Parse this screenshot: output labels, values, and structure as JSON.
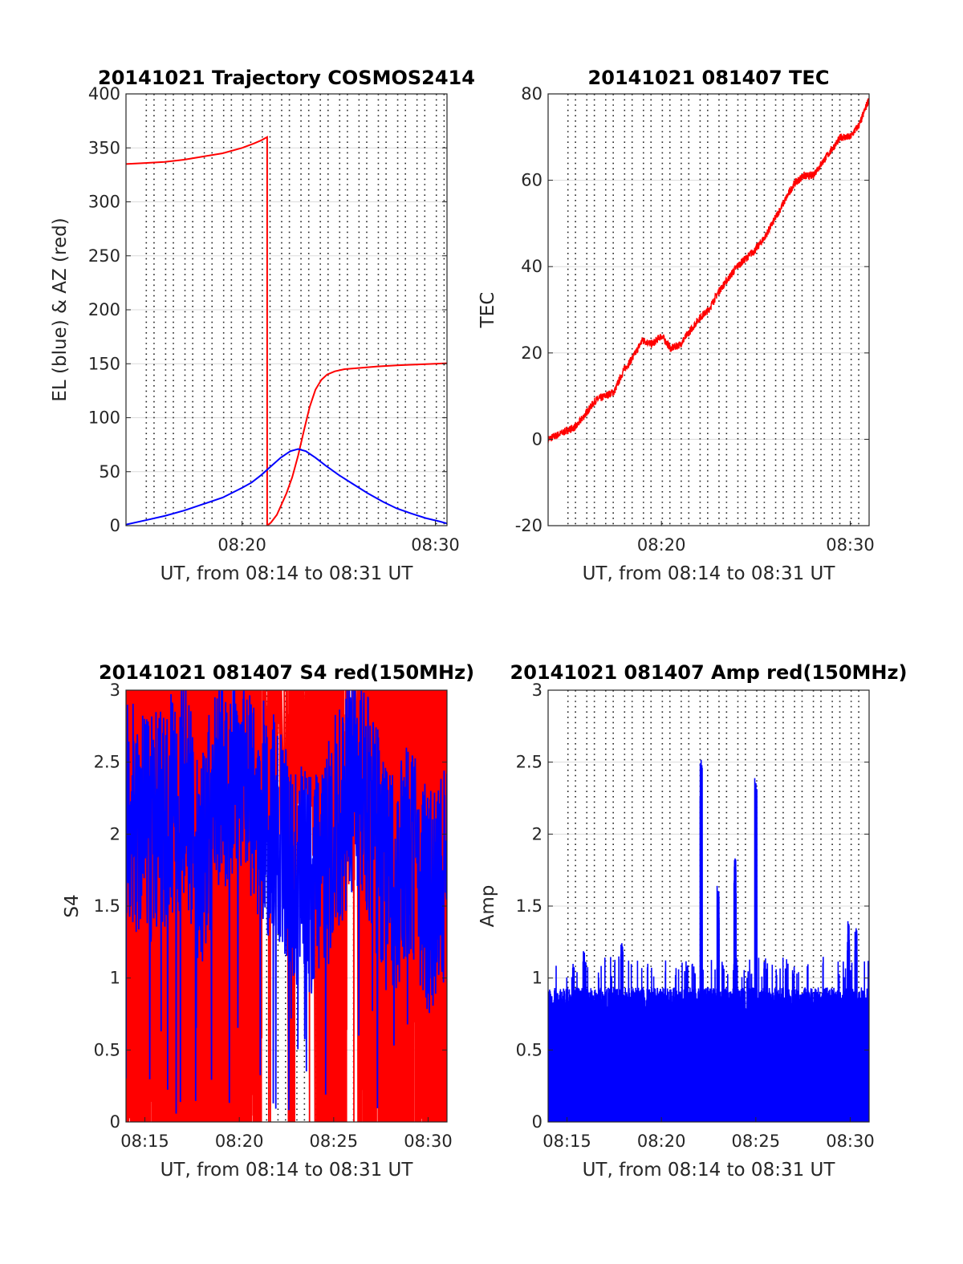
{
  "chart_data": [
    {
      "id": "trajectory",
      "type": "line",
      "title": "20141021 Trajectory COSMOS2414",
      "xlabel": "UT, from 08:14 to 08:31 UT",
      "ylabel": "EL (blue) & AZ (red)",
      "x_unit": "minutes after 08:00 UT",
      "xlim": [
        14.0,
        30.6
      ],
      "ylim": [
        0,
        400
      ],
      "yticks": [
        0,
        50,
        100,
        150,
        200,
        250,
        300,
        350,
        400
      ],
      "xticks": [
        {
          "value": 20,
          "label": "08:20"
        },
        {
          "value": 30,
          "label": "08:30"
        }
      ],
      "grid_y": true,
      "grid_x_minutes": [
        14.9,
        15.9,
        16.9,
        17.9,
        18.9,
        19.9,
        20.9,
        21.9,
        22.9,
        23.9,
        24.9,
        25.9,
        26.9,
        27.9,
        28.9,
        29.9
      ],
      "series": [
        {
          "color": "#ff0000",
          "x": [
            14.0,
            15.0,
            16.0,
            17.0,
            18.0,
            19.0,
            20.0,
            20.6,
            21.0,
            21.3,
            21.3,
            21.5,
            21.8,
            22.0,
            22.3,
            22.6,
            22.9,
            23.2,
            23.5,
            23.8,
            24.1,
            24.4,
            24.8,
            25.3,
            26.0,
            27.0,
            28.0,
            29.0,
            30.0,
            30.6
          ],
          "values": [
            335,
            336,
            337,
            339,
            342,
            345,
            350,
            354,
            357,
            360,
            0,
            3,
            10,
            18,
            30,
            45,
            65,
            88,
            110,
            126,
            135,
            140,
            143,
            145,
            146,
            147.5,
            148.5,
            149.3,
            150,
            150.5
          ]
        },
        {
          "color": "#0000ff",
          "x": [
            14.0,
            15.0,
            16.0,
            17.0,
            18.0,
            19.0,
            20.0,
            20.5,
            21.0,
            21.5,
            22.0,
            22.5,
            22.9,
            23.3,
            23.8,
            24.3,
            25.0,
            25.7,
            26.5,
            27.3,
            28.0,
            28.8,
            29.5,
            30.2,
            30.6
          ],
          "values": [
            1,
            5,
            9,
            14,
            20,
            26,
            35,
            40,
            47,
            55,
            63,
            69,
            71,
            69,
            63,
            56,
            47,
            39,
            30,
            22,
            16,
            11,
            7,
            4,
            2
          ]
        }
      ]
    },
    {
      "id": "tec",
      "type": "line",
      "title": "20141021 081407 TEC",
      "xlabel": "UT, from 08:14 to 08:31 UT",
      "ylabel": "TEC",
      "x_unit": "minutes after 08:00 UT",
      "xlim": [
        14.0,
        31.0
      ],
      "ylim": [
        -20,
        80
      ],
      "yticks": [
        -20,
        0,
        20,
        40,
        60,
        80
      ],
      "xticks": [
        {
          "value": 20,
          "label": "08:20"
        },
        {
          "value": 30,
          "label": "08:30"
        }
      ],
      "grid_y": true,
      "grid_x_minutes": [
        14.9,
        15.9,
        16.9,
        17.9,
        18.9,
        19.9,
        20.9,
        21.9,
        22.9,
        23.9,
        24.9,
        25.9,
        26.9,
        27.9,
        28.9,
        29.9
      ],
      "series": [
        {
          "color": "#ff0000",
          "x": [
            14.0,
            14.5,
            15.0,
            15.5,
            16.0,
            16.5,
            17.0,
            17.5,
            18.0,
            18.5,
            19.0,
            19.5,
            20.0,
            20.5,
            21.0,
            21.5,
            22.0,
            22.5,
            23.0,
            23.5,
            24.0,
            24.5,
            25.0,
            25.5,
            26.0,
            26.5,
            27.0,
            27.5,
            28.0,
            28.5,
            29.0,
            29.5,
            30.0,
            30.5,
            31.0
          ],
          "values": [
            0,
            1,
            2,
            3,
            6,
            9,
            10,
            11,
            16,
            19,
            23,
            22,
            24,
            21,
            22,
            25,
            28,
            30,
            34,
            37,
            40,
            42,
            44,
            47,
            51,
            55,
            59,
            61,
            61,
            64,
            67,
            70,
            70,
            73,
            79
          ]
        }
      ]
    },
    {
      "id": "s4",
      "type": "line",
      "title": "20141021 081407 S4 red(150MHz)",
      "xlabel": "UT, from 08:14 to 08:31 UT",
      "ylabel": "S4",
      "x_unit": "minutes after 08:00 UT",
      "xlim": [
        14.0,
        31.0
      ],
      "ylim": [
        0,
        3
      ],
      "yticks": [
        0,
        0.5,
        1,
        1.5,
        2,
        2.5,
        3
      ],
      "xticks": [
        {
          "value": 15,
          "label": "08:15"
        },
        {
          "value": 20,
          "label": "08:20"
        },
        {
          "value": 25,
          "label": "08:25"
        },
        {
          "value": 30,
          "label": "08:30"
        }
      ],
      "grid_y": true,
      "grid_x_minutes": [
        14.9,
        15.9,
        16.9,
        17.9,
        18.9,
        19.9,
        20.9,
        21.9,
        22.9,
        23.9,
        24.9,
        25.9,
        26.9,
        27.9,
        28.9,
        29.9
      ],
      "series": [
        {
          "color": "#ff0000",
          "description_band": "noisy vertical spikes between 0 and 3",
          "x": [
            14.0,
            15.0,
            16.0,
            17.0,
            18.0,
            19.0,
            20.0,
            21.0,
            22.0,
            23.0,
            24.0,
            25.0,
            26.0,
            27.0,
            28.0,
            29.0,
            30.0,
            31.0
          ],
          "values": [
            3,
            0,
            3,
            0,
            3,
            0,
            3,
            0,
            3,
            0,
            3,
            0,
            3,
            0,
            3,
            0,
            3,
            0
          ]
        },
        {
          "color": "#0000ff",
          "x": [
            14.0,
            15.0,
            16.0,
            17.0,
            18.0,
            19.0,
            20.0,
            21.0,
            22.0,
            23.0,
            24.0,
            25.0,
            26.0,
            27.0,
            28.0,
            29.0,
            30.0,
            31.0
          ],
          "values": [
            2.2,
            2.0,
            2.1,
            2.3,
            1.8,
            2.4,
            2.5,
            2.2,
            2.0,
            1.7,
            1.6,
            2.0,
            2.4,
            2.1,
            1.6,
            1.9,
            1.5,
            1.7
          ]
        }
      ]
    },
    {
      "id": "amp",
      "type": "line",
      "title": "20141021 081407 Amp red(150MHz)",
      "xlabel": "UT, from 08:14 to 08:31 UT",
      "ylabel": "Amp",
      "x_unit": "minutes after 08:00 UT",
      "xlim": [
        14.0,
        31.0
      ],
      "ylim": [
        0,
        3
      ],
      "yticks": [
        0,
        0.5,
        1,
        1.5,
        2,
        2.5,
        3
      ],
      "xticks": [
        {
          "value": 15,
          "label": "08:15"
        },
        {
          "value": 20,
          "label": "08:20"
        },
        {
          "value": 25,
          "label": "08:25"
        },
        {
          "value": 30,
          "label": "08:30"
        }
      ],
      "grid_y": true,
      "grid_x_minutes": [
        14.9,
        15.9,
        16.9,
        17.9,
        18.9,
        19.9,
        20.9,
        21.9,
        22.9,
        23.9,
        24.9,
        25.9,
        26.9,
        27.9,
        28.9,
        29.9
      ],
      "series": [
        {
          "color": "#0000ff",
          "baseline": 0.85,
          "peaks": [
            {
              "x": 22.1,
              "value": 2.55
            },
            {
              "x": 23.0,
              "value": 1.65
            },
            {
              "x": 23.9,
              "value": 1.85
            },
            {
              "x": 25.0,
              "value": 2.42
            },
            {
              "x": 17.9,
              "value": 1.25
            },
            {
              "x": 15.9,
              "value": 1.2
            },
            {
              "x": 29.9,
              "value": 1.4
            },
            {
              "x": 30.3,
              "value": 1.35
            }
          ]
        }
      ]
    }
  ]
}
